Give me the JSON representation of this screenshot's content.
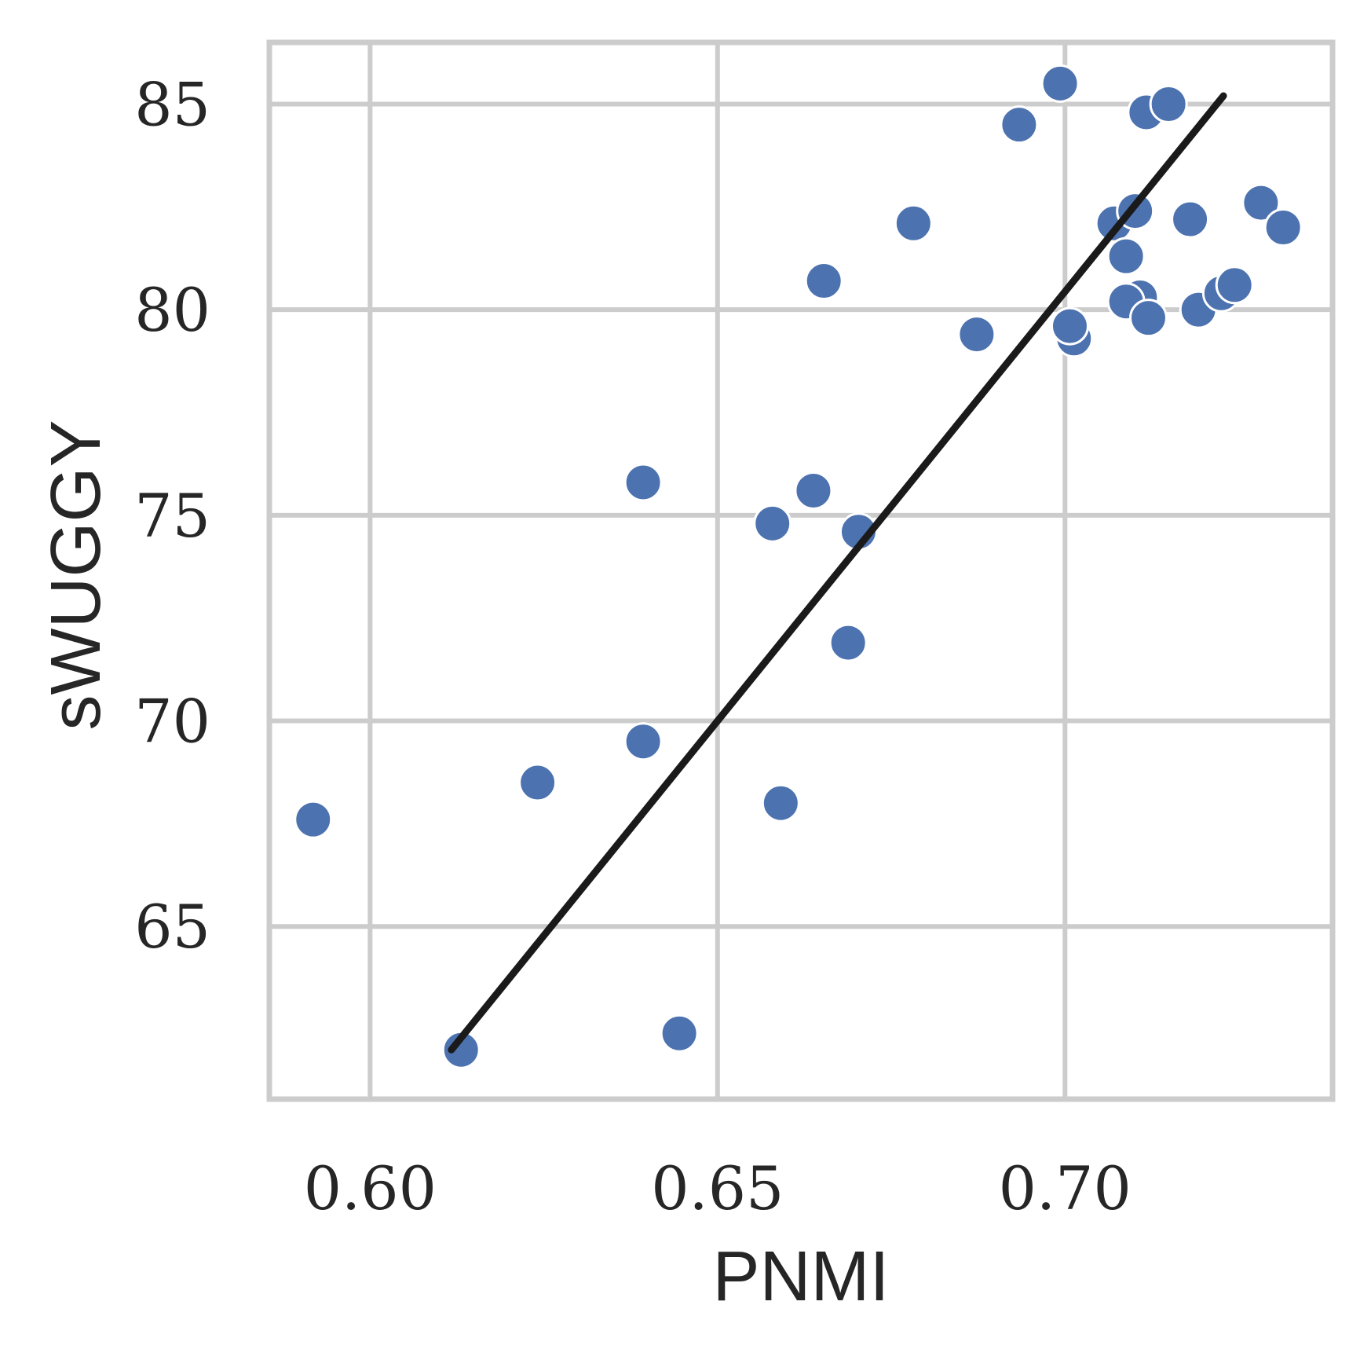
{
  "chart_data": {
    "type": "scatter",
    "xlabel": "PNMI",
    "ylabel": "sWUGGY",
    "xlim": [
      0.5855,
      0.7385
    ],
    "ylim": [
      60.8,
      86.5
    ],
    "xticks": [
      0.6,
      0.65,
      0.7
    ],
    "xtick_labels": [
      "0.60",
      "0.65",
      "0.70"
    ],
    "yticks": [
      65,
      70,
      75,
      80,
      85
    ],
    "ytick_labels": [
      "65",
      "70",
      "75",
      "80",
      "85"
    ],
    "grid": true,
    "point_color": "#4c72b0",
    "line_color": "#1a1a1a",
    "points": [
      {
        "x": 0.5918,
        "y": 67.6
      },
      {
        "x": 0.6131,
        "y": 62.0
      },
      {
        "x": 0.6241,
        "y": 68.5
      },
      {
        "x": 0.6393,
        "y": 75.8
      },
      {
        "x": 0.6393,
        "y": 69.5
      },
      {
        "x": 0.6445,
        "y": 62.4
      },
      {
        "x": 0.6579,
        "y": 74.8
      },
      {
        "x": 0.6591,
        "y": 68.0
      },
      {
        "x": 0.6638,
        "y": 75.6
      },
      {
        "x": 0.6653,
        "y": 80.7
      },
      {
        "x": 0.6688,
        "y": 71.9
      },
      {
        "x": 0.6703,
        "y": 74.6
      },
      {
        "x": 0.6782,
        "y": 82.1
      },
      {
        "x": 0.6873,
        "y": 79.4
      },
      {
        "x": 0.6934,
        "y": 84.5
      },
      {
        "x": 0.6993,
        "y": 85.5
      },
      {
        "x": 0.7013,
        "y": 79.3
      },
      {
        "x": 0.7007,
        "y": 79.6
      },
      {
        "x": 0.7071,
        "y": 82.1
      },
      {
        "x": 0.7088,
        "y": 81.3
      },
      {
        "x": 0.7101,
        "y": 82.4
      },
      {
        "x": 0.7108,
        "y": 80.3
      },
      {
        "x": 0.7088,
        "y": 80.2
      },
      {
        "x": 0.712,
        "y": 79.8
      },
      {
        "x": 0.7117,
        "y": 84.8
      },
      {
        "x": 0.7149,
        "y": 85.0
      },
      {
        "x": 0.718,
        "y": 82.2
      },
      {
        "x": 0.7192,
        "y": 80.0
      },
      {
        "x": 0.7225,
        "y": 80.4
      },
      {
        "x": 0.7244,
        "y": 80.6
      },
      {
        "x": 0.7282,
        "y": 82.6
      },
      {
        "x": 0.7314,
        "y": 82.0
      }
    ],
    "fit_line": {
      "x": [
        0.6117,
        0.7228
      ],
      "y": [
        62.0,
        85.2
      ]
    }
  }
}
